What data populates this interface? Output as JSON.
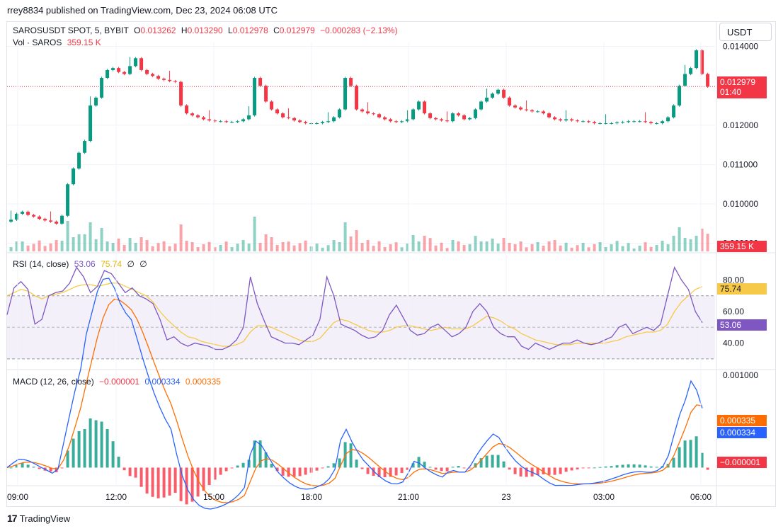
{
  "header": {
    "credit": "rrey8834 published on TradingView.com, Dec 23, 2024 06:08 UTC"
  },
  "symbol": {
    "name": "SAROSUSDT SPOT, 5, BYBIT",
    "o_label": "O",
    "o_value": "0.013262",
    "h_label": "H",
    "h_value": "0.013290",
    "l_label": "L",
    "l_value": "0.012978",
    "c_label": "C",
    "c_value": "0.012979",
    "change": "−0.000283 (−2.13%)"
  },
  "volume": {
    "label": "Vol · SAROS",
    "value": "359.15 K",
    "tag": "359.15 K"
  },
  "currency_button": "USDT",
  "price_tag": {
    "price": "0.012979",
    "countdown": "01:40"
  },
  "rsi": {
    "label": "RSI (14, close)",
    "value": "53.06",
    "ma_value": "75.74"
  },
  "macd": {
    "label": "MACD (12, 26, close)",
    "hist": "−0.000001",
    "macd": "0.000334",
    "signal": "0.000335"
  },
  "brand": {
    "logo": "17",
    "name": "TradingView"
  },
  "colors": {
    "up": "#089981",
    "down": "#f23645",
    "rsi": "#7e57c2",
    "rsi_ma": "#f7c948",
    "macd": "#2962ff",
    "signal": "#ff6d00"
  },
  "chart_data": [
    {
      "type": "candlestick",
      "title": "SAROSUSDT SPOT, 5, BYBIT",
      "price_axis_ticks": [
        "0.014000",
        "0.012000",
        "0.011000",
        "0.010000",
        "0.009000"
      ],
      "time_axis_ticks": [
        "09:00",
        "12:00",
        "15:00",
        "18:00",
        "21:00",
        "23",
        "03:00",
        "06:00"
      ],
      "ylim": [
        0.00885,
        0.0141
      ],
      "close_series": [
        0.0096,
        0.00975,
        0.0098,
        0.00972,
        0.00968,
        0.00962,
        0.00958,
        0.00955,
        0.0095,
        0.0097,
        0.0105,
        0.0109,
        0.0113,
        0.0116,
        0.0125,
        0.0127,
        0.0132,
        0.0134,
        0.01345,
        0.01335,
        0.0133,
        0.0135,
        0.0137,
        0.0134,
        0.0133,
        0.01325,
        0.01318,
        0.01315,
        0.01312,
        0.0131,
        0.0125,
        0.0123,
        0.01225,
        0.0122,
        0.01215,
        0.01212,
        0.0121,
        0.0121,
        0.01208,
        0.01208,
        0.0121,
        0.01215,
        0.01225,
        0.0132,
        0.013,
        0.0126,
        0.0124,
        0.0123,
        0.0122,
        0.01218,
        0.01212,
        0.01208,
        0.01205,
        0.01205,
        0.01205,
        0.01208,
        0.0121,
        0.0122,
        0.0124,
        0.0132,
        0.013,
        0.0124,
        0.01235,
        0.0123,
        0.01228,
        0.0122,
        0.01215,
        0.0121,
        0.01208,
        0.0121,
        0.01215,
        0.0124,
        0.0126,
        0.0123,
        0.01218,
        0.01215,
        0.01212,
        0.0121,
        0.0123,
        0.01225,
        0.01215,
        0.01218,
        0.0124,
        0.0126,
        0.0127,
        0.0128,
        0.0129,
        0.0127,
        0.0125,
        0.01245,
        0.0124,
        0.01238,
        0.01235,
        0.01235,
        0.0123,
        0.0122,
        0.01215,
        0.01212,
        0.01215,
        0.01212,
        0.0121,
        0.0121,
        0.01208,
        0.01205,
        0.01205,
        0.01205,
        0.01205,
        0.01207,
        0.01208,
        0.0121,
        0.0121,
        0.0121,
        0.01208,
        0.01205,
        0.01205,
        0.0121,
        0.0122,
        0.0125,
        0.013,
        0.0133,
        0.01345,
        0.0139,
        0.0133,
        0.01298
      ],
      "series": [
        {
          "name": "Vol · SAROS",
          "last": "359.15 K"
        }
      ]
    },
    {
      "type": "line",
      "title": "RSI (14, close)",
      "ticks": [
        "80.00",
        "60.00",
        "40.00"
      ],
      "ylim": [
        25,
        95
      ],
      "band": [
        30,
        70
      ],
      "series": [
        {
          "name": "RSI",
          "last": 53.06
        },
        {
          "name": "MA",
          "last": 75.74
        }
      ],
      "rsi_values": [
        58,
        75,
        79,
        74,
        52,
        55,
        70,
        72,
        73,
        78,
        88,
        82,
        72,
        76,
        86,
        84,
        78,
        72,
        75,
        70,
        68,
        65,
        55,
        42,
        44,
        40,
        38,
        40,
        39,
        38,
        36,
        36,
        38,
        42,
        50,
        82,
        65,
        54,
        44,
        42,
        40,
        40,
        39,
        42,
        45,
        55,
        82,
        70,
        52,
        50,
        48,
        45,
        43,
        44,
        48,
        58,
        64,
        56,
        48,
        45,
        46,
        50,
        52,
        48,
        44,
        46,
        50,
        60,
        65,
        60,
        50,
        46,
        44,
        44,
        38,
        36,
        40,
        38,
        36,
        38,
        40,
        40,
        42,
        40,
        39,
        40,
        42,
        44,
        50,
        52,
        46,
        48,
        50,
        48,
        52,
        70,
        88,
        80,
        74,
        60,
        53
      ],
      "ma_values": [
        70,
        72,
        74,
        73,
        70,
        68,
        70,
        71,
        72,
        74,
        76,
        77,
        77,
        76,
        77,
        78,
        78,
        76,
        74,
        72,
        70,
        66,
        60,
        55,
        51,
        47,
        44,
        43,
        41,
        40,
        39,
        38,
        38,
        39,
        41,
        47,
        51,
        51,
        50,
        48,
        46,
        44,
        42,
        41,
        41,
        43,
        48,
        53,
        55,
        54,
        52,
        50,
        48,
        47,
        47,
        48,
        50,
        51,
        51,
        50,
        49,
        48,
        49,
        50,
        49,
        49,
        49,
        51,
        54,
        57,
        56,
        54,
        51,
        49,
        46,
        44,
        42,
        41,
        40,
        39,
        39,
        39,
        40,
        40,
        40,
        40,
        40,
        41,
        42,
        44,
        45,
        46,
        47,
        47,
        48,
        52,
        60,
        66,
        70,
        74,
        75.74
      ]
    },
    {
      "type": "line",
      "title": "MACD (12, 26, close)",
      "ticks": [
        "0.001000"
      ],
      "ylim": [
        -0.00015,
        0.001
      ],
      "series": [
        {
          "name": "MACD",
          "last": 0.000334
        },
        {
          "name": "Signal",
          "last": 0.000335
        },
        {
          "name": "Histogram",
          "last": -1e-06
        }
      ]
    }
  ]
}
